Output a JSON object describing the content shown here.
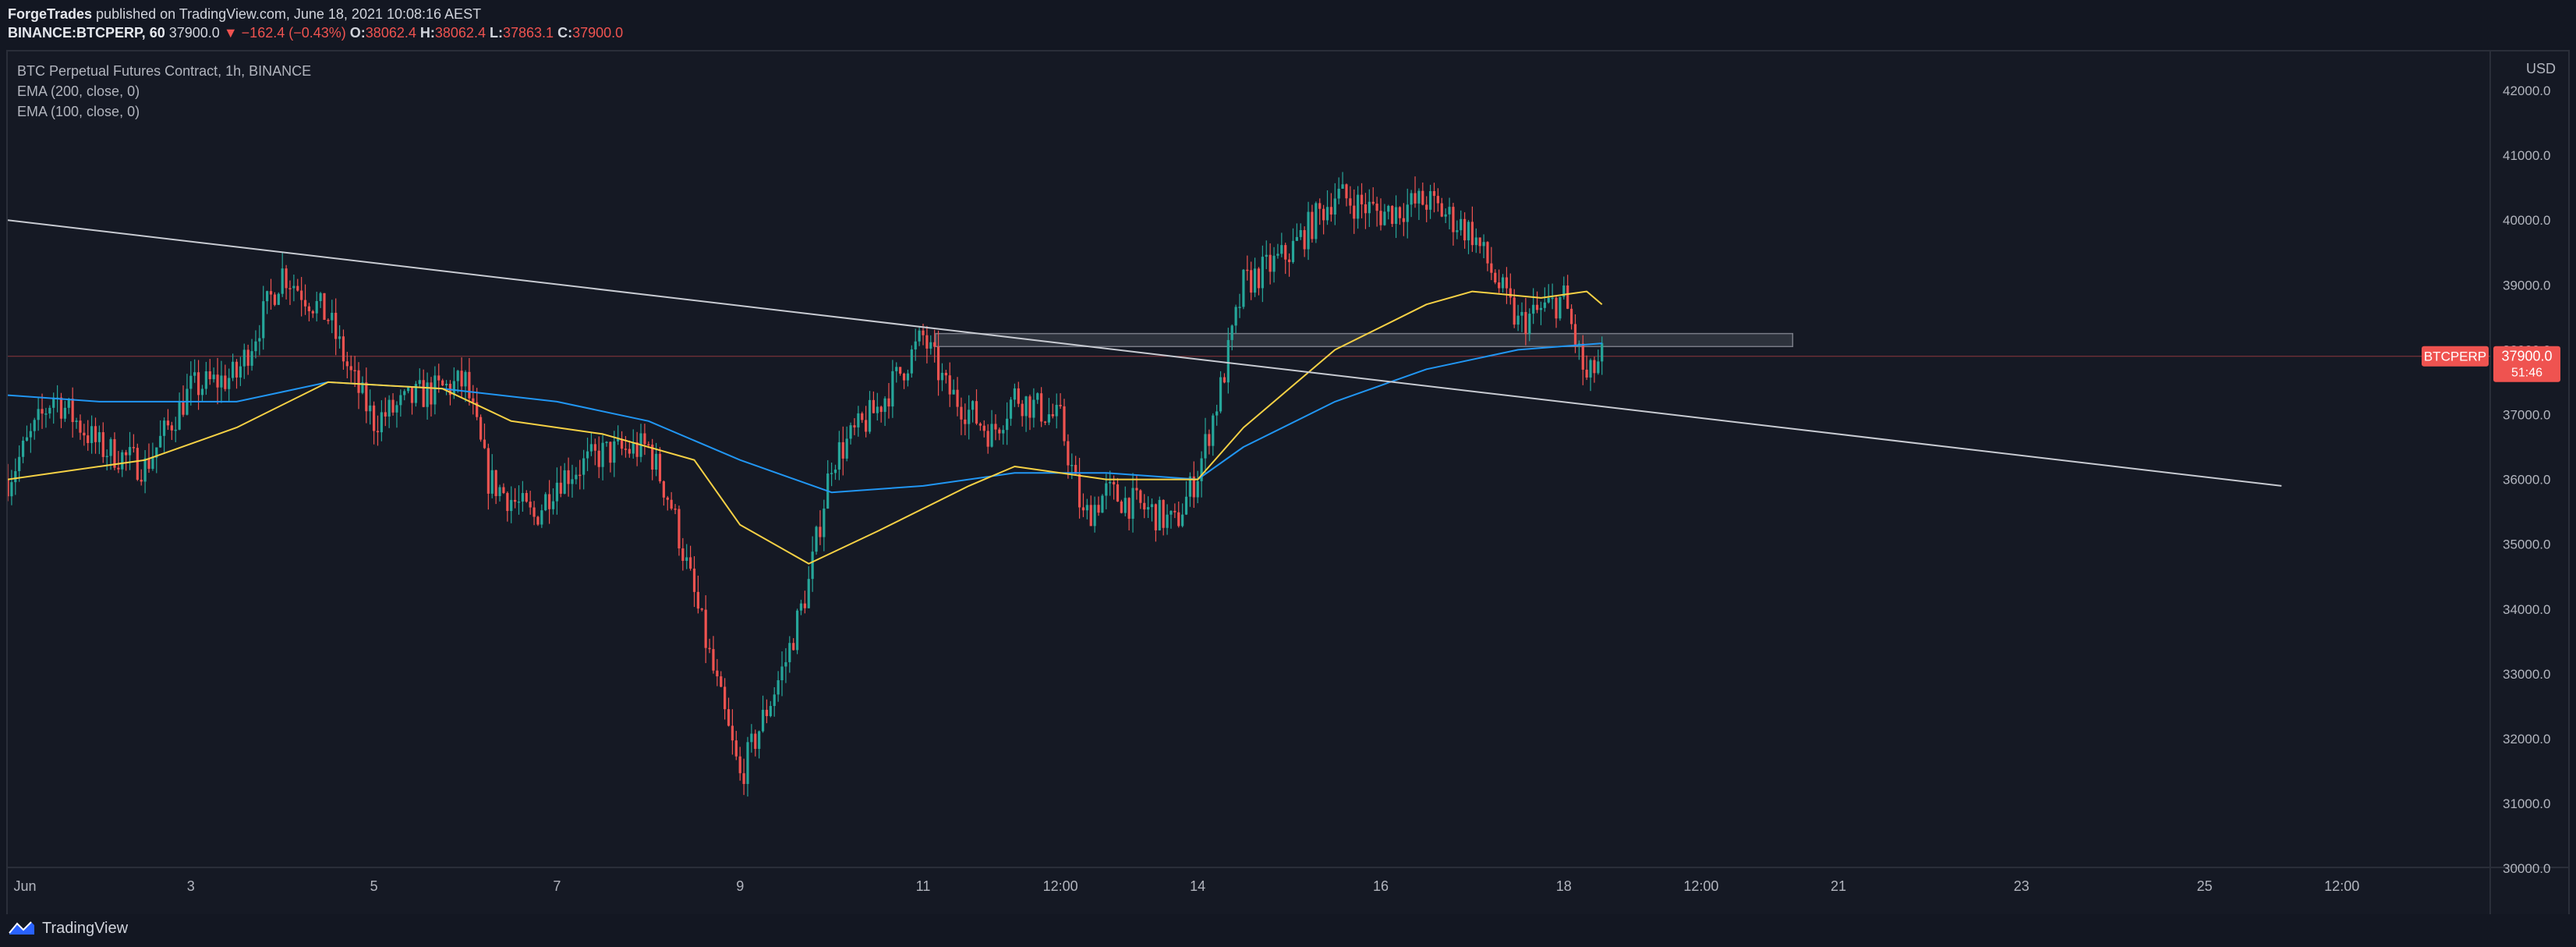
{
  "header": {
    "publisher": "ForgeTrades",
    "published_text": " published on TradingView.com, June 18, 2021 10:08:16 AEST",
    "symbol": "BINANCE:BTCPERP, 60",
    "last": "37900.0",
    "arrow": "▼",
    "change": "−162.4 (−0.43%)",
    "o_label": "O:",
    "o_value": "38062.4",
    "h_label": "H:",
    "h_value": "38062.4",
    "l_label": "L:",
    "l_value": "37863.1",
    "c_label": "C:",
    "c_value": "37900.0"
  },
  "legend": {
    "title": "BTC Perpetual Futures Contract, 1h, BINANCE",
    "ema200": "EMA (200, close, 0)",
    "ema100": "EMA (100, close, 0)"
  },
  "price_axis": {
    "currency": "USD",
    "ticks": [
      "42000.0",
      "41000.0",
      "40000.0",
      "39000.0",
      "38000.0",
      "37000.0",
      "36000.0",
      "35000.0",
      "34000.0",
      "33000.0",
      "32000.0",
      "31000.0",
      "30000.0"
    ],
    "tag_symbol": "BTCPERP",
    "tag_price": "37900.0",
    "tag_countdown": "51:46"
  },
  "time_axis": {
    "ticks": [
      "Jun",
      "3",
      "5",
      "7",
      "9",
      "11",
      "12:00",
      "14",
      "16",
      "18",
      "12:00",
      "21",
      "23",
      "25",
      "12:00"
    ]
  },
  "footer": {
    "brand": "TradingView"
  },
  "colors": {
    "up": "#26a69a",
    "down": "#ef5350",
    "ema200": "#2196f3",
    "ema100": "#f6d145",
    "trendline": "#c8cbd2",
    "zone": "#5d606b",
    "price_tag": "#ef5350"
  },
  "chart_data": {
    "type": "candlestick",
    "interval": "1h",
    "y_axis_ticks": [
      30000,
      31000,
      32000,
      33000,
      34000,
      35000,
      36000,
      37000,
      38000,
      39000,
      40000,
      41000,
      42000
    ],
    "ylim": [
      29900,
      42400
    ],
    "last_price": 37900.0,
    "close_path": [
      {
        "t": "Jun 1 00:00",
        "p": 36000
      },
      {
        "t": "Jun 1 12:00",
        "p": 37300
      },
      {
        "t": "Jun 2 00:00",
        "p": 36500
      },
      {
        "t": "Jun 2 12:00",
        "p": 36200
      },
      {
        "t": "Jun 3 00:00",
        "p": 37400
      },
      {
        "t": "Jun 3 12:00",
        "p": 37600
      },
      {
        "t": "Jun 4 00:00",
        "p": 39200
      },
      {
        "t": "Jun 4 12:00",
        "p": 38500
      },
      {
        "t": "Jun 4 18:00",
        "p": 37600
      },
      {
        "t": "Jun 5 00:00",
        "p": 36900
      },
      {
        "t": "Jun 5 12:00",
        "p": 37300
      },
      {
        "t": "Jun 6 00:00",
        "p": 37500
      },
      {
        "t": "Jun 6 06:00",
        "p": 36000
      },
      {
        "t": "Jun 6 18:00",
        "p": 35400
      },
      {
        "t": "Jun 7 00:00",
        "p": 36000
      },
      {
        "t": "Jun 7 12:00",
        "p": 36400
      },
      {
        "t": "Jun 8 00:00",
        "p": 36500
      },
      {
        "t": "Jun 8 06:00",
        "p": 35600
      },
      {
        "t": "Jun 8 12:00",
        "p": 34200
      },
      {
        "t": "Jun 8 18:00",
        "p": 32800
      },
      {
        "t": "Jun 9 00:00",
        "p": 31400
      },
      {
        "t": "Jun 9 12:00",
        "p": 33200
      },
      {
        "t": "Jun 9 18:00",
        "p": 34400
      },
      {
        "t": "Jun 10 00:00",
        "p": 36300
      },
      {
        "t": "Jun 10 12:00",
        "p": 37100
      },
      {
        "t": "Jun 11 00:00",
        "p": 38200
      },
      {
        "t": "Jun 11 06:00",
        "p": 37400
      },
      {
        "t": "Jun 11 18:00",
        "p": 36700
      },
      {
        "t": "Jun 12 00:00",
        "p": 37300
      },
      {
        "t": "Jun 12 12:00",
        "p": 36900
      },
      {
        "t": "Jun 12 18:00",
        "p": 35400
      },
      {
        "t": "Jun 13 00:00",
        "p": 35800
      },
      {
        "t": "Jun 13 12:00",
        "p": 35500
      },
      {
        "t": "Jun 13 18:00",
        "p": 35300
      },
      {
        "t": "Jun 14 00:00",
        "p": 36100
      },
      {
        "t": "Jun 14 06:00",
        "p": 37400
      },
      {
        "t": "Jun 14 12:00",
        "p": 39000
      },
      {
        "t": "Jun 15 00:00",
        "p": 39500
      },
      {
        "t": "Jun 15 12:00",
        "p": 40400
      },
      {
        "t": "Jun 16 00:00",
        "p": 40100
      },
      {
        "t": "Jun 16 12:00",
        "p": 40300
      },
      {
        "t": "Jun 17 00:00",
        "p": 39800
      },
      {
        "t": "Jun 17 12:00",
        "p": 38400
      },
      {
        "t": "Jun 18 00:00",
        "p": 38800
      },
      {
        "t": "Jun 18 06:00",
        "p": 37500
      },
      {
        "t": "Jun 18 10:00",
        "p": 37900
      }
    ],
    "ema100_path": [
      {
        "t": "Jun 1 00:00",
        "p": 36000
      },
      {
        "t": "Jun 2 12:00",
        "p": 36300
      },
      {
        "t": "Jun 3 12:00",
        "p": 36800
      },
      {
        "t": "Jun 4 12:00",
        "p": 37500
      },
      {
        "t": "Jun 5 18:00",
        "p": 37400
      },
      {
        "t": "Jun 6 12:00",
        "p": 36900
      },
      {
        "t": "Jun 7 12:00",
        "p": 36700
      },
      {
        "t": "Jun 8 12:00",
        "p": 36300
      },
      {
        "t": "Jun 9 00:00",
        "p": 35300
      },
      {
        "t": "Jun 9 18:00",
        "p": 34700
      },
      {
        "t": "Jun 10 12:00",
        "p": 35200
      },
      {
        "t": "Jun 11 12:00",
        "p": 35900
      },
      {
        "t": "Jun 12 00:00",
        "p": 36200
      },
      {
        "t": "Jun 13 00:00",
        "p": 36000
      },
      {
        "t": "Jun 14 00:00",
        "p": 36000
      },
      {
        "t": "Jun 14 12:00",
        "p": 36800
      },
      {
        "t": "Jun 15 12:00",
        "p": 38000
      },
      {
        "t": "Jun 16 12:00",
        "p": 38700
      },
      {
        "t": "Jun 17 00:00",
        "p": 38900
      },
      {
        "t": "Jun 17 18:00",
        "p": 38800
      },
      {
        "t": "Jun 18 06:00",
        "p": 38900
      },
      {
        "t": "Jun 18 10:00",
        "p": 38700
      }
    ],
    "ema200_path": [
      {
        "t": "Jun 1 00:00",
        "p": 37300
      },
      {
        "t": "Jun 2 00:00",
        "p": 37200
      },
      {
        "t": "Jun 3 12:00",
        "p": 37200
      },
      {
        "t": "Jun 4 12:00",
        "p": 37500
      },
      {
        "t": "Jun 5 18:00",
        "p": 37400
      },
      {
        "t": "Jun 7 00:00",
        "p": 37200
      },
      {
        "t": "Jun 8 00:00",
        "p": 36900
      },
      {
        "t": "Jun 9 00:00",
        "p": 36300
      },
      {
        "t": "Jun 10 00:00",
        "p": 35800
      },
      {
        "t": "Jun 11 00:00",
        "p": 35900
      },
      {
        "t": "Jun 12 00:00",
        "p": 36100
      },
      {
        "t": "Jun 13 00:00",
        "p": 36100
      },
      {
        "t": "Jun 14 00:00",
        "p": 36000
      },
      {
        "t": "Jun 14 12:00",
        "p": 36500
      },
      {
        "t": "Jun 15 12:00",
        "p": 37200
      },
      {
        "t": "Jun 16 12:00",
        "p": 37700
      },
      {
        "t": "Jun 17 12:00",
        "p": 38000
      },
      {
        "t": "Jun 18 10:00",
        "p": 38100
      }
    ],
    "trendline": {
      "start": {
        "t": "Jun 1 00:00",
        "p": 40000
      },
      "end": {
        "t": "Jun 25 12:00",
        "p": 35900
      }
    },
    "zone": {
      "start": "Jun 11 00:00",
      "end": "Jun 20 12:00",
      "top": 38250,
      "bottom": 38050
    }
  }
}
